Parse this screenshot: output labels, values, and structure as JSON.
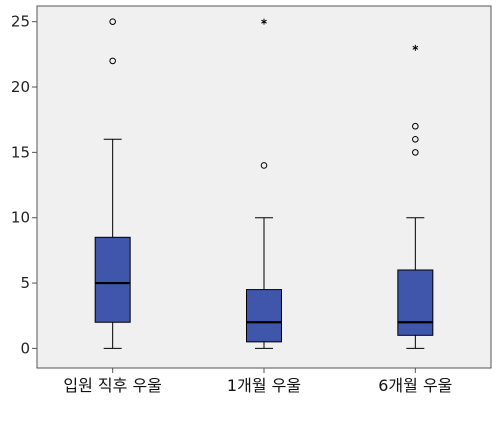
{
  "chart_data": {
    "type": "boxplot",
    "categories": [
      "입원 직후 우울",
      "1개월 우울",
      "6개월 우울"
    ],
    "ylim": [
      -1.5,
      26.2
    ],
    "yticks": [
      0,
      5,
      10,
      15,
      20,
      25
    ],
    "ytick_labels": [
      "0",
      "5",
      "10",
      "15",
      "20",
      "25"
    ],
    "grid": false,
    "boxes": [
      {
        "whisker_low": 0,
        "q1": 2,
        "median": 5,
        "q3": 8.5,
        "whisker_high": 16,
        "outliers": [
          22,
          25
        ],
        "extremes": []
      },
      {
        "whisker_low": 0,
        "q1": 0.5,
        "median": 2,
        "q3": 4.5,
        "whisker_high": 10,
        "outliers": [
          14
        ],
        "extremes": [
          25
        ]
      },
      {
        "whisker_low": 0,
        "q1": 1,
        "median": 2,
        "q3": 6,
        "whisker_high": 10,
        "outliers": [
          15,
          16,
          17
        ],
        "extremes": [
          23
        ]
      }
    ],
    "colors": {
      "plot_background": "#f0f0f0",
      "box_fill": "#3f56ab",
      "line": "#000000",
      "axis": "#555555"
    }
  }
}
